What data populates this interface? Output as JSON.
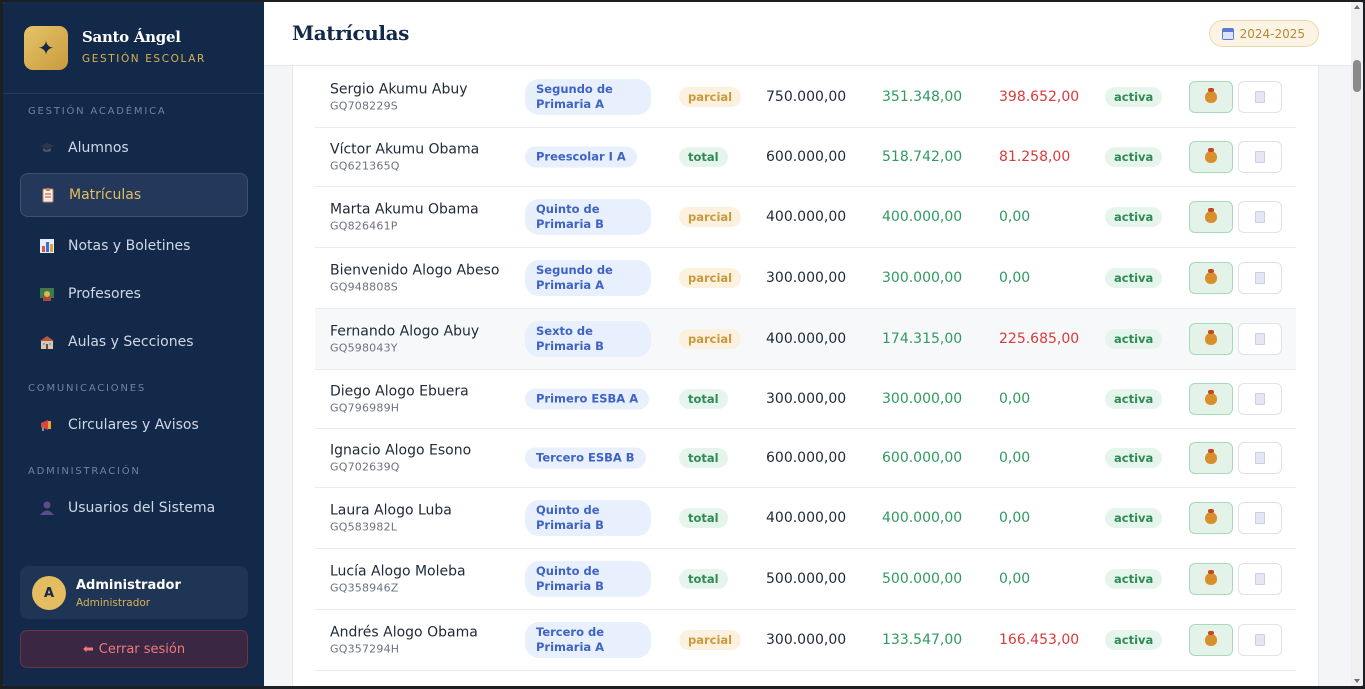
{
  "brand": {
    "name": "Santo Ángel",
    "subtitle": "GESTIÓN ESCOLAR"
  },
  "sidebar": {
    "sections": [
      {
        "label": "GESTIÓN ACADÉMICA"
      },
      {
        "label": "COMUNICACIONES"
      },
      {
        "label": "ADMINISTRACIÓN"
      }
    ],
    "items": [
      {
        "label": "Alumnos",
        "icon": "graduation-cap-icon"
      },
      {
        "label": "Matrículas",
        "icon": "clipboard-icon",
        "active": true
      },
      {
        "label": "Notas y Boletines",
        "icon": "bar-chart-icon"
      },
      {
        "label": "Profesores",
        "icon": "teacher-icon"
      },
      {
        "label": "Aulas y Secciones",
        "icon": "school-icon"
      },
      {
        "label": "Circulares y Avisos",
        "icon": "megaphone-icon"
      },
      {
        "label": "Usuarios del Sistema",
        "icon": "user-icon"
      }
    ]
  },
  "user": {
    "initial": "A",
    "name": "Administrador",
    "role": "Administrador"
  },
  "logout": {
    "arrow": "⬅",
    "label": "Cerrar sesión"
  },
  "header": {
    "title": "Matrículas",
    "year": "2024-2025"
  },
  "rows": [
    {
      "name": "Sergio Akumu Abuy",
      "code": "GQ708229S",
      "course": "Segundo de Primaria A",
      "type": "parcial",
      "amount": "750.000,00",
      "paid": "351.348,00",
      "pending": "398.652,00",
      "status": "activa"
    },
    {
      "name": "Víctor Akumu Obama",
      "code": "GQ621365Q",
      "course": "Preescolar I A",
      "type": "total",
      "amount": "600.000,00",
      "paid": "518.742,00",
      "pending": "81.258,00",
      "status": "activa"
    },
    {
      "name": "Marta Akumu Obama",
      "code": "GQ826461P",
      "course": "Quinto de Primaria B",
      "type": "parcial",
      "amount": "400.000,00",
      "paid": "400.000,00",
      "pending": "0,00",
      "status": "activa"
    },
    {
      "name": "Bienvenido Alogo Abeso",
      "code": "GQ948808S",
      "course": "Segundo de Primaria A",
      "type": "parcial",
      "amount": "300.000,00",
      "paid": "300.000,00",
      "pending": "0,00",
      "status": "activa"
    },
    {
      "name": "Fernando Alogo Abuy",
      "code": "GQ598043Y",
      "course": "Sexto de Primaria B",
      "type": "parcial",
      "amount": "400.000,00",
      "paid": "174.315,00",
      "pending": "225.685,00",
      "status": "activa"
    },
    {
      "name": "Diego Alogo Ebuera",
      "code": "GQ796989H",
      "course": "Primero ESBA A",
      "type": "total",
      "amount": "300.000,00",
      "paid": "300.000,00",
      "pending": "0,00",
      "status": "activa"
    },
    {
      "name": "Ignacio Alogo Esono",
      "code": "GQ702639Q",
      "course": "Tercero ESBA B",
      "type": "total",
      "amount": "600.000,00",
      "paid": "600.000,00",
      "pending": "0,00",
      "status": "activa"
    },
    {
      "name": "Laura Alogo Luba",
      "code": "GQ583982L",
      "course": "Quinto de Primaria B",
      "type": "total",
      "amount": "400.000,00",
      "paid": "400.000,00",
      "pending": "0,00",
      "status": "activa"
    },
    {
      "name": "Lucía Alogo Moleba",
      "code": "GQ358946Z",
      "course": "Quinto de Primaria B",
      "type": "total",
      "amount": "500.000,00",
      "paid": "500.000,00",
      "pending": "0,00",
      "status": "activa"
    },
    {
      "name": "Andrés Alogo Obama",
      "code": "GQ357294H",
      "course": "Tercero de Primaria A",
      "type": "parcial",
      "amount": "300.000,00",
      "paid": "133.547,00",
      "pending": "166.453,00",
      "status": "activa"
    }
  ],
  "colors": {
    "sidebar": "#13294a",
    "accent": "#e5bf5f",
    "paid": "#2f9a5f",
    "pending": "#d93a3a"
  }
}
